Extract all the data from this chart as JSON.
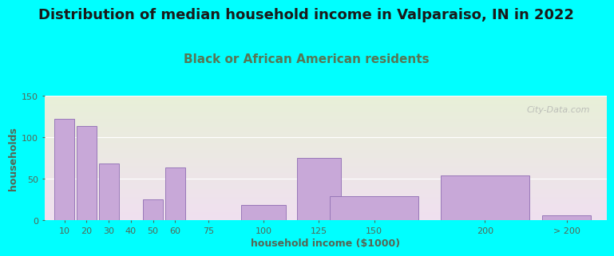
{
  "title": "Distribution of median household income in Valparaiso, IN in 2022",
  "subtitle": "Black or African American residents",
  "xlabel": "household income ($1000)",
  "ylabel": "households",
  "background_color": "#00FFFF",
  "plot_bg_top": "#e8f0d8",
  "plot_bg_bottom": "#f0e0f0",
  "bar_color": "#c8a8d8",
  "bar_edge_color": "#9878b8",
  "categories": [
    "10",
    "20",
    "30",
    "40",
    "50",
    "60",
    "75",
    "100",
    "125",
    "150",
    "200",
    "> 200"
  ],
  "values": [
    122,
    114,
    68,
    0,
    25,
    64,
    0,
    18,
    75,
    29,
    54,
    6
  ],
  "ylim": [
    0,
    150
  ],
  "yticks": [
    0,
    50,
    100,
    150
  ],
  "title_fontsize": 13,
  "subtitle_fontsize": 11,
  "axis_label_fontsize": 9,
  "tick_fontsize": 8,
  "watermark_text": "City-Data.com",
  "title_color": "#1a1a1a",
  "subtitle_color": "#557755",
  "axis_label_color": "#556655",
  "tick_color": "#556655"
}
